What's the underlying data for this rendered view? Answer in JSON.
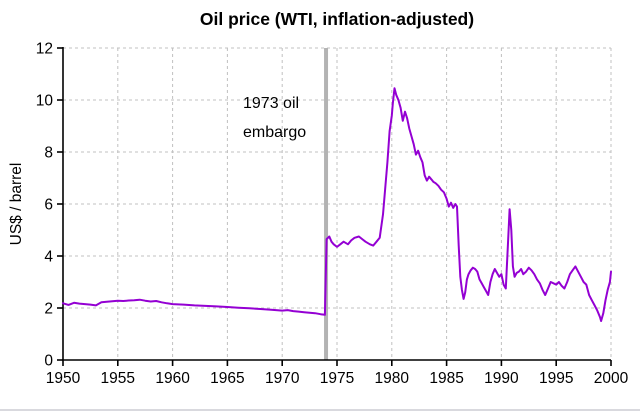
{
  "chart_data": {
    "type": "line",
    "title": "Oil price (WTI, inflation-adjusted)",
    "xlabel": "",
    "ylabel": "US$ / barrel",
    "xlim": [
      1950,
      2000
    ],
    "ylim": [
      0,
      12
    ],
    "xticks": [
      1950,
      1955,
      1960,
      1965,
      1970,
      1975,
      1980,
      1985,
      1990,
      1995,
      2000
    ],
    "yticks": [
      0,
      2,
      4,
      6,
      8,
      10,
      12
    ],
    "grid": true,
    "legend": false,
    "annotation": {
      "text_lines": [
        "1973 oil",
        "embargo"
      ],
      "x": 1974
    },
    "colors": {
      "line": "#9400d3",
      "grid": "#c0c0c0",
      "axis": "#000000",
      "event_marker": "#b3b3b3",
      "background": "#ffffff"
    },
    "series": [
      {
        "name": "Oil price (WTI, inflation-adjusted)",
        "x": [
          1950,
          1950.5,
          1951,
          1951.5,
          1952,
          1952.5,
          1953,
          1953.5,
          1954,
          1954.5,
          1955,
          1955.5,
          1956,
          1956.5,
          1957,
          1957.5,
          1958,
          1958.5,
          1959,
          1959.5,
          1960,
          1961,
          1962,
          1963,
          1964,
          1965,
          1966,
          1967,
          1968,
          1969,
          1970,
          1970.5,
          1971,
          1971.5,
          1972,
          1972.5,
          1973,
          1973.5,
          1973.9,
          1974.05,
          1974.3,
          1974.5,
          1974.7,
          1975,
          1975.3,
          1975.6,
          1976,
          1976.3,
          1976.6,
          1977,
          1977.3,
          1977.6,
          1978,
          1978.3,
          1978.6,
          1978.9,
          1979.2,
          1979.4,
          1979.6,
          1979.8,
          1980,
          1980.1,
          1980.25,
          1980.4,
          1980.6,
          1980.8,
          1981,
          1981.2,
          1981.4,
          1981.6,
          1981.8,
          1982,
          1982.2,
          1982.4,
          1982.6,
          1982.8,
          1983,
          1983.2,
          1983.4,
          1983.6,
          1983.8,
          1984,
          1984.25,
          1984.5,
          1984.75,
          1985,
          1985.2,
          1985.4,
          1985.6,
          1985.8,
          1985.95,
          1986.1,
          1986.25,
          1986.4,
          1986.55,
          1986.7,
          1986.85,
          1987,
          1987.2,
          1987.4,
          1987.6,
          1987.8,
          1988,
          1988.2,
          1988.4,
          1988.6,
          1988.8,
          1989,
          1989.2,
          1989.4,
          1989.6,
          1989.8,
          1990,
          1990.2,
          1990.4,
          1990.6,
          1990.75,
          1990.9,
          1991.05,
          1991.2,
          1991.4,
          1991.6,
          1991.8,
          1992,
          1992.25,
          1992.5,
          1992.75,
          1993,
          1993.25,
          1993.5,
          1993.75,
          1994,
          1994.25,
          1994.5,
          1994.75,
          1995,
          1995.25,
          1995.5,
          1995.75,
          1996,
          1996.25,
          1996.5,
          1996.75,
          1997,
          1997.25,
          1997.5,
          1997.75,
          1998,
          1998.25,
          1998.5,
          1998.75,
          1999,
          1999.1,
          1999.3,
          1999.5,
          1999.7,
          1999.9,
          2000
        ],
        "y": [
          2.18,
          2.12,
          2.2,
          2.17,
          2.15,
          2.13,
          2.1,
          2.22,
          2.24,
          2.26,
          2.28,
          2.27,
          2.29,
          2.3,
          2.32,
          2.28,
          2.25,
          2.27,
          2.22,
          2.18,
          2.15,
          2.13,
          2.1,
          2.08,
          2.06,
          2.04,
          2.01,
          1.99,
          1.96,
          1.93,
          1.9,
          1.92,
          1.88,
          1.86,
          1.84,
          1.82,
          1.8,
          1.76,
          1.74,
          4.65,
          4.75,
          4.55,
          4.45,
          4.35,
          4.45,
          4.55,
          4.45,
          4.6,
          4.7,
          4.75,
          4.65,
          4.55,
          4.45,
          4.4,
          4.55,
          4.7,
          5.6,
          6.6,
          7.6,
          8.8,
          9.4,
          9.9,
          10.45,
          10.2,
          10.0,
          9.7,
          9.2,
          9.55,
          9.3,
          8.9,
          8.6,
          8.3,
          7.9,
          8.05,
          7.8,
          7.6,
          7.1,
          6.9,
          7.05,
          6.95,
          6.85,
          6.8,
          6.7,
          6.55,
          6.45,
          6.2,
          5.9,
          6.05,
          5.85,
          6.0,
          5.9,
          4.4,
          3.2,
          2.7,
          2.35,
          2.6,
          3.1,
          3.3,
          3.45,
          3.55,
          3.5,
          3.4,
          3.1,
          2.95,
          2.8,
          2.65,
          2.5,
          3.0,
          3.3,
          3.5,
          3.35,
          3.2,
          3.3,
          2.9,
          2.75,
          4.5,
          5.8,
          5.0,
          3.6,
          3.2,
          3.35,
          3.4,
          3.5,
          3.3,
          3.4,
          3.55,
          3.45,
          3.3,
          3.1,
          2.95,
          2.7,
          2.5,
          2.75,
          3.0,
          2.95,
          2.9,
          3.0,
          2.85,
          2.75,
          3.0,
          3.3,
          3.45,
          3.6,
          3.4,
          3.2,
          3.0,
          2.9,
          2.5,
          2.3,
          2.1,
          1.9,
          1.65,
          1.5,
          1.8,
          2.3,
          2.7,
          3.0,
          3.4
        ]
      }
    ]
  }
}
